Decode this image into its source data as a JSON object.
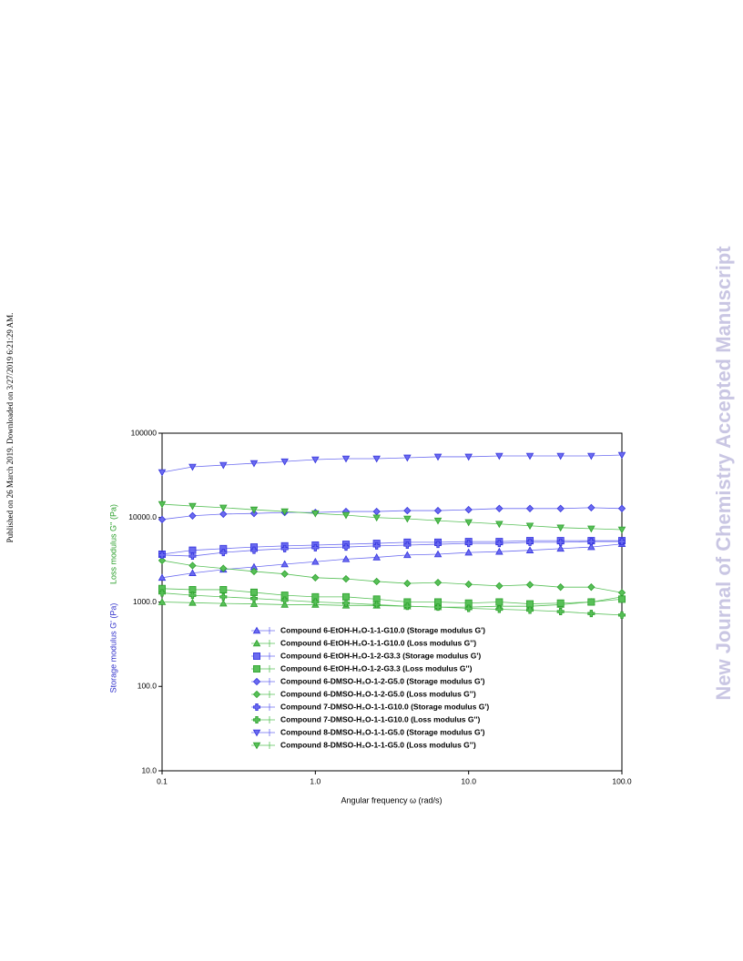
{
  "header": {
    "published": "Published on 26 March 2019. Downloaded on 3/27/2019 6:21:29 AM.",
    "watermark": "New Journal of Chemistry Accepted Manuscript"
  },
  "chart_data": {
    "type": "line",
    "log_x": true,
    "log_y": true,
    "xlabel": "Angular frequency ω (rad/s)",
    "ylabels": [
      {
        "text": "Loss modulus G'' (Pa)",
        "color": "#2ca02c"
      },
      {
        "text": "Storage modulus G' (Pa)",
        "color": "#3333cc"
      }
    ],
    "xlim": [
      0.1,
      100
    ],
    "ylim": [
      10,
      100000
    ],
    "xticks": [
      0.1,
      {
        "value": 1,
        "label": "1.0"
      },
      {
        "value": 10,
        "label": "10.0"
      },
      {
        "value": 100,
        "label": "100.0"
      }
    ],
    "yticks": [
      {
        "value": 10,
        "label": "10.0"
      },
      {
        "value": 100,
        "label": "100.0"
      },
      {
        "value": 1000,
        "label": "1000.0"
      },
      {
        "value": 10000,
        "label": "10000.0"
      },
      100000
    ],
    "x": [
      0.1,
      0.158,
      0.251,
      0.398,
      0.631,
      1,
      1.585,
      2.512,
      3.981,
      6.31,
      10,
      15.85,
      25.12,
      39.81,
      63.1,
      100
    ],
    "series": [
      {
        "name": "Compound 6-EtOH-H₂O-1-1-G10.0 (Storage modulus G')",
        "color": "#3333dd",
        "marker": "triangle",
        "values": [
          1940,
          2200,
          2420,
          2600,
          2800,
          3000,
          3220,
          3380,
          3600,
          3680,
          3860,
          3950,
          4100,
          4290,
          4480,
          4870
        ]
      },
      {
        "name": "Compound 6-EtOH-H₂O-1-1-G10.0 (Loss modulus G'')",
        "color": "#2ca02c",
        "marker": "triangle",
        "values": [
          1000,
          980,
          960,
          950,
          930,
          930,
          910,
          910,
          890,
          870,
          870,
          890,
          890,
          930,
          1000,
          1150
        ]
      },
      {
        "name": "Compound 6-EtOH-H₂O-1-2-G3.3 (Storage modulus G')",
        "color": "#3333dd",
        "marker": "square",
        "values": [
          3680,
          4100,
          4290,
          4480,
          4620,
          4720,
          4830,
          4950,
          5100,
          5100,
          5200,
          5200,
          5330,
          5330,
          5330,
          5330
        ]
      },
      {
        "name": "Compound 6-EtOH-H₂O-1-2-G3.3 (Loss modulus G'')",
        "color": "#2ca02c",
        "marker": "square",
        "values": [
          1440,
          1400,
          1400,
          1300,
          1200,
          1150,
          1150,
          1080,
          1000,
          1000,
          970,
          1000,
          950,
          970,
          1000,
          1080
        ]
      },
      {
        "name": "Compound 6-DMSO-H₂O-1-2-G5.0 (Storage modulus G')",
        "color": "#3333dd",
        "marker": "diamond",
        "values": [
          9500,
          10500,
          11000,
          11200,
          11500,
          11500,
          11800,
          11800,
          12100,
          12100,
          12400,
          12800,
          12800,
          12800,
          13100,
          12800
        ]
      },
      {
        "name": "Compound 6-DMSO-H₂O-1-2-G5.0 (Loss modulus G'')",
        "color": "#2ca02c",
        "marker": "diamond",
        "values": [
          3100,
          2700,
          2500,
          2300,
          2150,
          1940,
          1880,
          1750,
          1660,
          1700,
          1620,
          1550,
          1600,
          1500,
          1500,
          1290
        ]
      },
      {
        "name": "Compound 7-DMSO-H₂O-1-1-G10.0 (Storage modulus G')",
        "color": "#3333dd",
        "marker": "plus",
        "values": [
          3600,
          3500,
          3860,
          4100,
          4290,
          4400,
          4480,
          4620,
          4720,
          4830,
          4950,
          4950,
          5100,
          5100,
          5200,
          5200
        ]
      },
      {
        "name": "Compound 7-DMSO-H₂O-1-1-G10.0 (Loss modulus G'')",
        "color": "#2ca02c",
        "marker": "plus",
        "values": [
          1280,
          1200,
          1150,
          1100,
          1050,
          1000,
          970,
          930,
          890,
          870,
          840,
          820,
          800,
          770,
          730,
          700
        ]
      },
      {
        "name": "Compound 8-DMSO-H₂O-1-1-G5.0 (Storage modulus G')",
        "color": "#3333dd",
        "marker": "down",
        "values": [
          34400,
          39900,
          41900,
          44000,
          46200,
          48700,
          49900,
          49900,
          51200,
          52500,
          52500,
          53800,
          53800,
          53800,
          53800,
          55100
        ]
      },
      {
        "name": "Compound 8-DMSO-H₂O-1-1-G5.0 (Loss modulus G'')",
        "color": "#2ca02c",
        "marker": "down",
        "values": [
          14400,
          13700,
          13100,
          12400,
          11800,
          11200,
          10700,
          10000,
          9700,
          9200,
          8800,
          8400,
          8000,
          7600,
          7400,
          7200
        ]
      }
    ]
  }
}
